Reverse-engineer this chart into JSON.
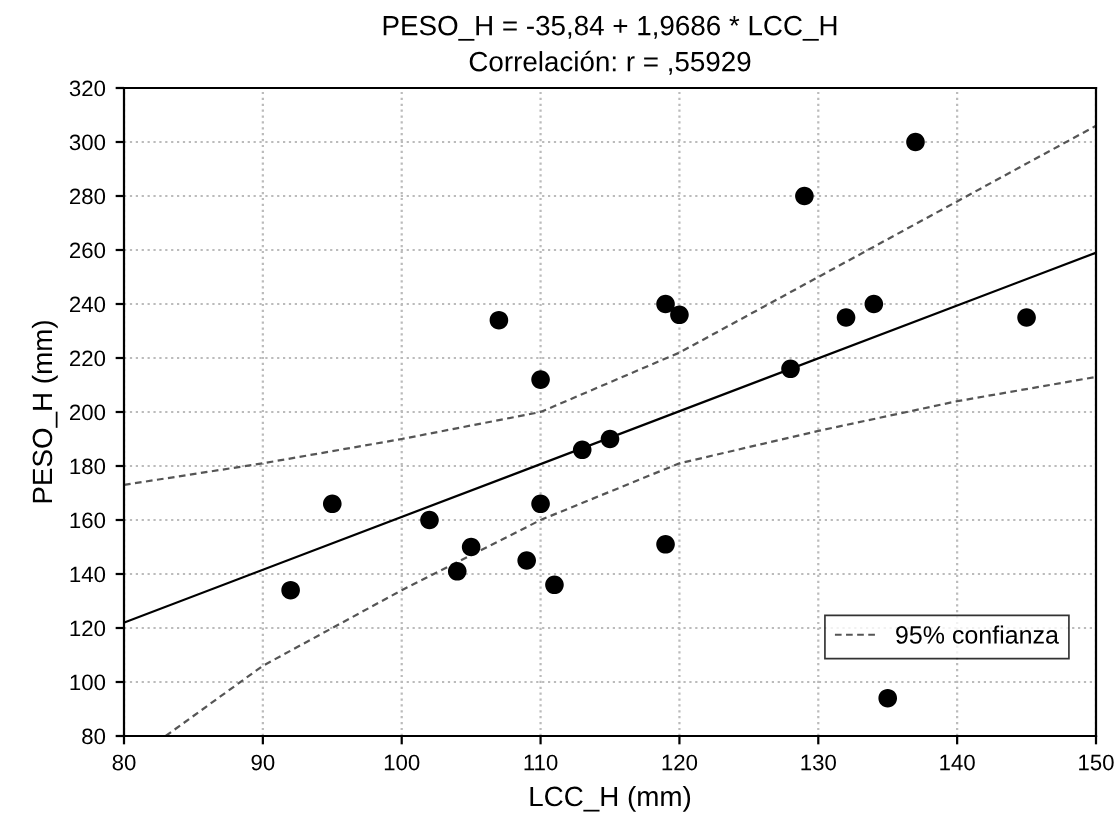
{
  "chart_data": {
    "type": "scatter",
    "title": "PESO_H = -35,84 + 1,9686 * LCC_H",
    "subtitle": "Correlación: r = ,55929",
    "xlabel": "LCC_H (mm)",
    "ylabel": "PESO_H (mm)",
    "xlim": [
      80,
      150
    ],
    "xticks": [
      80,
      90,
      100,
      110,
      120,
      130,
      140,
      150
    ],
    "ylim": [
      80,
      320
    ],
    "yticks": [
      80,
      100,
      120,
      140,
      160,
      180,
      200,
      220,
      240,
      260,
      280,
      300,
      320
    ],
    "grid": true,
    "legend": "bottom right",
    "marker": "circle",
    "series": [
      {
        "color": "#000000",
        "x": [
          92,
          95,
          102,
          104,
          105,
          107,
          109,
          110,
          110,
          111,
          113,
          115,
          119,
          120,
          119,
          128,
          129,
          132,
          134,
          137,
          145,
          135
        ],
        "values": [
          134,
          166,
          160,
          141,
          150,
          234,
          145,
          212,
          166,
          136,
          186,
          190,
          240,
          236,
          151,
          216,
          280,
          235,
          240,
          300,
          235,
          94
        ]
      },
      {
        "type": "line",
        "color": "#000000",
        "line_style": "solid",
        "marker": "none",
        "x": [
          80,
          150
        ],
        "values": [
          122,
          259
        ]
      },
      {
        "type": "line",
        "name": "95% confianza",
        "color": "#555555",
        "line_style": "dashed",
        "marker": "none",
        "x": [
          80,
          90,
          100,
          110,
          120,
          130,
          140,
          150
        ],
        "values": [
          173,
          181,
          190,
          200,
          222,
          250,
          278,
          306
        ]
      },
      {
        "type": "line",
        "color": "#555555",
        "line_style": "dashed",
        "marker": "none",
        "x": [
          83,
          90,
          100,
          110,
          120,
          130,
          140,
          150
        ],
        "values": [
          80,
          106,
          134,
          160,
          181,
          193,
          204,
          213
        ]
      }
    ]
  }
}
